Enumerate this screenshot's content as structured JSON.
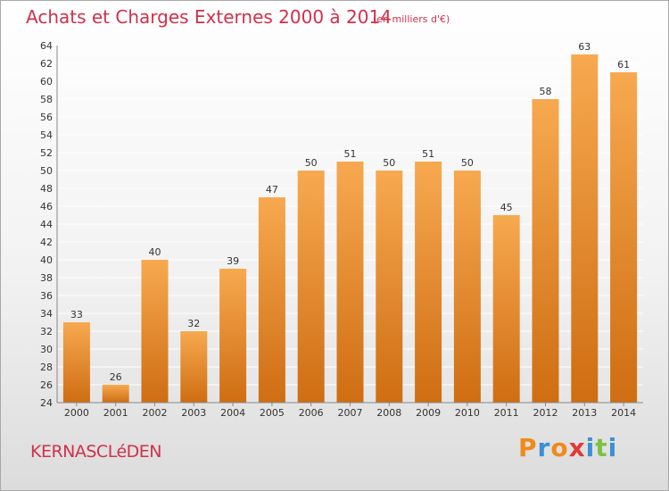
{
  "header": {
    "title": "Achats et Charges Externes 2000 à 2014",
    "subtitle": "(en milliers d'€)"
  },
  "footer": {
    "commune": "KERNASCLéDEN",
    "logo_letters": [
      "P",
      "r",
      "o",
      "x",
      "i",
      "t",
      "i"
    ],
    "logo_colors": [
      "#f08a1c",
      "#3a8fd8",
      "#f08a1c",
      "#e03a3a",
      "#3a8fd8",
      "#7cc242",
      "#3a8fd8"
    ]
  },
  "chart_data": {
    "type": "bar",
    "title": "Achats et Charges Externes 2000 à 2014",
    "unit": "(en milliers d'€)",
    "categories": [
      "2000",
      "2001",
      "2002",
      "2003",
      "2004",
      "2005",
      "2006",
      "2007",
      "2008",
      "2009",
      "2010",
      "2011",
      "2012",
      "2013",
      "2014"
    ],
    "values": [
      33,
      26,
      40,
      32,
      39,
      47,
      50,
      51,
      50,
      51,
      50,
      45,
      58,
      63,
      61
    ],
    "ylim": [
      24,
      64
    ],
    "yticks": [
      24,
      26,
      28,
      30,
      32,
      34,
      36,
      38,
      40,
      42,
      44,
      46,
      48,
      50,
      52,
      54,
      56,
      58,
      60,
      62,
      64
    ],
    "grid": true,
    "colors": {
      "bar_top": "#f7a950",
      "bar_bottom": "#cf6d12",
      "grid": "#ffffff",
      "text": "#333333"
    }
  }
}
